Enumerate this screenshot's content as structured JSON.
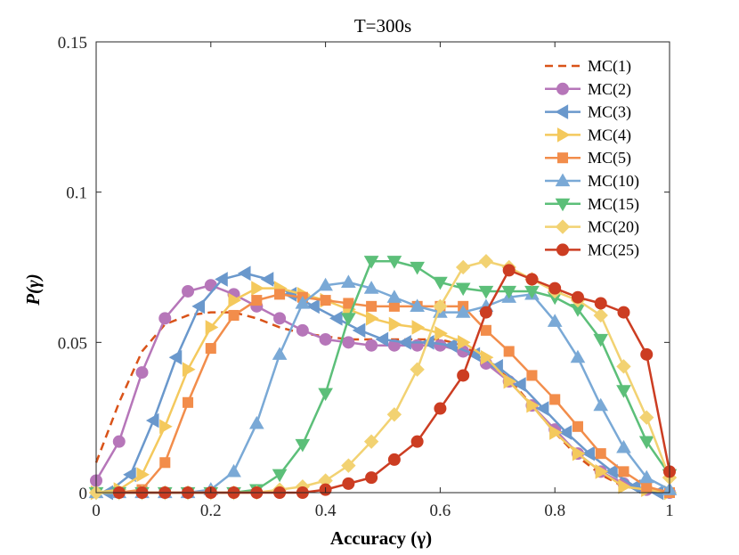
{
  "chart_data": {
    "type": "line",
    "title": "T=300s",
    "xlabel": "Accuracy (γ)",
    "ylabel": "P(γ)",
    "xlim": [
      0,
      1
    ],
    "ylim": [
      0,
      0.15
    ],
    "xticks": [
      0,
      0.2,
      0.4,
      0.6,
      0.8,
      1
    ],
    "xtick_labels": [
      "0",
      "0.2",
      "0.4",
      "0.6",
      "0.8",
      "1"
    ],
    "yticks": [
      0,
      0.05,
      0.1,
      0.15
    ],
    "ytick_labels": [
      "0",
      "0.05",
      "0.1",
      "0.15"
    ],
    "grid": false,
    "legend_position": "top-right",
    "series": [
      {
        "name": "MC(1)",
        "color": "#d95319",
        "marker": "none",
        "dashed": true,
        "x": [
          0,
          0.04,
          0.08,
          0.12,
          0.16,
          0.2,
          0.24,
          0.28,
          0.32,
          0.36,
          0.4,
          0.44,
          0.48,
          0.52,
          0.56,
          0.6,
          0.64,
          0.68,
          0.72,
          0.76,
          0.8,
          0.84,
          0.88,
          0.92,
          0.96,
          1
        ],
        "y": [
          0.01,
          0.03,
          0.047,
          0.056,
          0.059,
          0.06,
          0.06,
          0.058,
          0.055,
          0.053,
          0.052,
          0.051,
          0.051,
          0.051,
          0.051,
          0.051,
          0.049,
          0.044,
          0.038,
          0.029,
          0.02,
          0.012,
          0.006,
          0.002,
          0.001,
          0
        ]
      },
      {
        "name": "MC(2)",
        "color": "#b676b9",
        "marker": "circle",
        "dashed": false,
        "x": [
          0,
          0.04,
          0.08,
          0.12,
          0.16,
          0.2,
          0.24,
          0.28,
          0.32,
          0.36,
          0.4,
          0.44,
          0.48,
          0.52,
          0.56,
          0.6,
          0.64,
          0.68,
          0.72,
          0.76,
          0.8,
          0.84,
          0.88,
          0.92,
          0.96,
          1
        ],
        "y": [
          0.004,
          0.017,
          0.04,
          0.058,
          0.067,
          0.069,
          0.066,
          0.062,
          0.058,
          0.054,
          0.051,
          0.05,
          0.049,
          0.049,
          0.049,
          0.049,
          0.047,
          0.043,
          0.037,
          0.029,
          0.021,
          0.013,
          0.007,
          0.003,
          0.001,
          0
        ]
      },
      {
        "name": "MC(3)",
        "color": "#6a98cc",
        "marker": "triangle-left",
        "dashed": false,
        "x": [
          0.02,
          0.06,
          0.1,
          0.14,
          0.18,
          0.22,
          0.26,
          0.3,
          0.34,
          0.38,
          0.42,
          0.46,
          0.5,
          0.54,
          0.58,
          0.62,
          0.66,
          0.7,
          0.74,
          0.78,
          0.82,
          0.86,
          0.9,
          0.94,
          0.98
        ],
        "y": [
          0,
          0.006,
          0.024,
          0.045,
          0.062,
          0.071,
          0.073,
          0.071,
          0.066,
          0.062,
          0.058,
          0.054,
          0.051,
          0.05,
          0.05,
          0.049,
          0.046,
          0.042,
          0.036,
          0.028,
          0.02,
          0.013,
          0.007,
          0.002,
          0
        ]
      },
      {
        "name": "MC(4)",
        "color": "#f4c95d",
        "marker": "triangle-right",
        "dashed": false,
        "x": [
          0,
          0.04,
          0.08,
          0.12,
          0.16,
          0.2,
          0.24,
          0.28,
          0.32,
          0.36,
          0.4,
          0.44,
          0.48,
          0.52,
          0.56,
          0.6,
          0.64,
          0.68,
          0.72,
          0.76,
          0.8,
          0.84,
          0.88,
          0.92,
          0.96,
          1
        ],
        "y": [
          0,
          0.001,
          0.006,
          0.022,
          0.041,
          0.055,
          0.064,
          0.068,
          0.068,
          0.066,
          0.064,
          0.061,
          0.058,
          0.056,
          0.055,
          0.053,
          0.05,
          0.045,
          0.037,
          0.029,
          0.02,
          0.013,
          0.007,
          0.002,
          0.001,
          0
        ]
      },
      {
        "name": "MC(5)",
        "color": "#f28d4b",
        "marker": "square",
        "dashed": false,
        "x": [
          0,
          0.04,
          0.08,
          0.12,
          0.16,
          0.2,
          0.24,
          0.28,
          0.32,
          0.36,
          0.4,
          0.44,
          0.48,
          0.52,
          0.56,
          0.6,
          0.64,
          0.68,
          0.72,
          0.76,
          0.8,
          0.84,
          0.88,
          0.92,
          0.96,
          1
        ],
        "y": [
          0,
          0,
          0.001,
          0.01,
          0.03,
          0.048,
          0.059,
          0.064,
          0.066,
          0.065,
          0.064,
          0.063,
          0.062,
          0.062,
          0.062,
          0.062,
          0.062,
          0.054,
          0.047,
          0.039,
          0.031,
          0.022,
          0.013,
          0.007,
          0.002,
          0
        ]
      },
      {
        "name": "MC(10)",
        "color": "#7aa9d6",
        "marker": "triangle-up",
        "dashed": false,
        "x": [
          0,
          0.04,
          0.08,
          0.12,
          0.16,
          0.2,
          0.24,
          0.28,
          0.32,
          0.36,
          0.4,
          0.44,
          0.48,
          0.52,
          0.56,
          0.6,
          0.64,
          0.68,
          0.72,
          0.76,
          0.8,
          0.84,
          0.88,
          0.92,
          0.96,
          1
        ],
        "y": [
          0,
          0,
          0,
          0,
          0,
          0.001,
          0.007,
          0.023,
          0.046,
          0.063,
          0.069,
          0.07,
          0.068,
          0.065,
          0.062,
          0.06,
          0.06,
          0.062,
          0.065,
          0.066,
          0.057,
          0.045,
          0.029,
          0.015,
          0.005,
          0.001
        ]
      },
      {
        "name": "MC(15)",
        "color": "#5cbf79",
        "marker": "triangle-down",
        "dashed": false,
        "x": [
          0,
          0.04,
          0.08,
          0.12,
          0.16,
          0.2,
          0.24,
          0.28,
          0.32,
          0.36,
          0.4,
          0.44,
          0.48,
          0.52,
          0.56,
          0.6,
          0.64,
          0.68,
          0.72,
          0.76,
          0.8,
          0.84,
          0.88,
          0.92,
          0.96,
          1
        ],
        "y": [
          0,
          0,
          0,
          0,
          0,
          0,
          0,
          0.001,
          0.006,
          0.016,
          0.033,
          0.058,
          0.077,
          0.077,
          0.075,
          0.07,
          0.068,
          0.067,
          0.067,
          0.067,
          0.065,
          0.061,
          0.051,
          0.034,
          0.017,
          0.006
        ]
      },
      {
        "name": "MC(20)",
        "color": "#f2d272",
        "marker": "diamond",
        "dashed": false,
        "x": [
          0,
          0.04,
          0.08,
          0.12,
          0.16,
          0.2,
          0.24,
          0.28,
          0.32,
          0.36,
          0.4,
          0.44,
          0.48,
          0.52,
          0.56,
          0.6,
          0.64,
          0.68,
          0.72,
          0.76,
          0.8,
          0.84,
          0.88,
          0.92,
          0.96,
          1
        ],
        "y": [
          0,
          0,
          0,
          0,
          0,
          0,
          0,
          0,
          0.001,
          0.002,
          0.004,
          0.009,
          0.017,
          0.026,
          0.041,
          0.062,
          0.075,
          0.077,
          0.075,
          0.071,
          0.067,
          0.064,
          0.059,
          0.042,
          0.025,
          0.005
        ]
      },
      {
        "name": "MC(25)",
        "color": "#cc3d22",
        "marker": "circle",
        "dashed": false,
        "x": [
          0.04,
          0.08,
          0.12,
          0.16,
          0.2,
          0.24,
          0.28,
          0.32,
          0.36,
          0.4,
          0.44,
          0.48,
          0.52,
          0.56,
          0.6,
          0.64,
          0.68,
          0.72,
          0.76,
          0.8,
          0.84,
          0.88,
          0.92,
          0.96,
          1
        ],
        "y": [
          0,
          0,
          0,
          0,
          0,
          0,
          0,
          0,
          0,
          0.001,
          0.003,
          0.005,
          0.011,
          0.017,
          0.028,
          0.039,
          0.06,
          0.074,
          0.071,
          0.068,
          0.065,
          0.063,
          0.06,
          0.046,
          0.007
        ]
      }
    ]
  }
}
